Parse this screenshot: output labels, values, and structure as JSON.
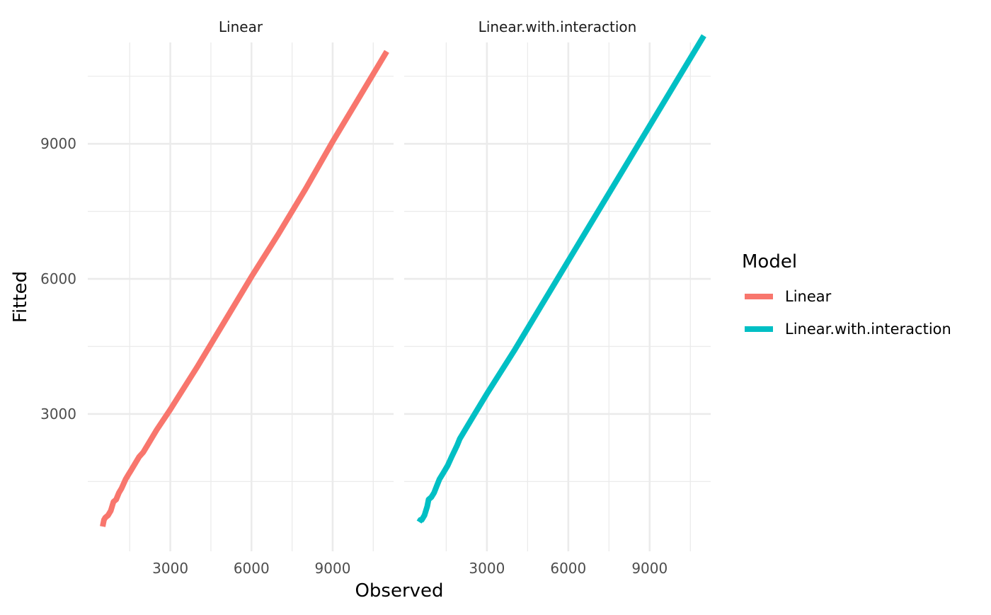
{
  "chart_data": {
    "type": "line",
    "facet_by": "Model",
    "facets": [
      "Linear",
      "Linear.with.interaction"
    ],
    "xlabel": "Observed",
    "ylabel": "Fitted",
    "xlim": [
      -50,
      11250
    ],
    "ylim": [
      -50,
      11250
    ],
    "x_ticks": [
      3000,
      6000,
      9000
    ],
    "y_ticks": [
      3000,
      6000,
      9000
    ],
    "x_tick_labels": [
      "3000",
      "6000",
      "9000"
    ],
    "y_tick_labels": [
      "3000",
      "6000",
      "9000"
    ],
    "grid": true,
    "legend": {
      "title": "Model",
      "position": "right"
    },
    "series": [
      {
        "name": "Linear",
        "color": "#F8766D",
        "x": [
          500,
          550,
          600,
          700,
          800,
          850,
          900,
          1000,
          1100,
          1200,
          1350,
          1450,
          1550,
          1700,
          1850,
          2000,
          2500,
          3000,
          4000,
          5000,
          6000,
          7000,
          8000,
          9000,
          10000,
          11000
        ],
        "y": [
          500,
          650,
          700,
          750,
          850,
          950,
          1050,
          1100,
          1250,
          1350,
          1550,
          1650,
          1750,
          1900,
          2050,
          2150,
          2650,
          3100,
          4050,
          5050,
          6050,
          7000,
          8000,
          9050,
          10050,
          11050
        ]
      },
      {
        "name": "Linear.with.interaction",
        "color": "#00BFC4",
        "x": [
          500,
          550,
          600,
          700,
          800,
          850,
          950,
          1050,
          1150,
          1250,
          1400,
          1550,
          1700,
          1900,
          2000,
          2500,
          3000,
          4000,
          5000,
          6000,
          7000,
          8000,
          9000,
          10000,
          11000
        ],
        "y": [
          600,
          650,
          650,
          750,
          950,
          1100,
          1150,
          1250,
          1400,
          1550,
          1700,
          1850,
          2050,
          2300,
          2450,
          2950,
          3450,
          4400,
          5400,
          6400,
          7400,
          8400,
          9400,
          10400,
          11400
        ]
      }
    ]
  }
}
